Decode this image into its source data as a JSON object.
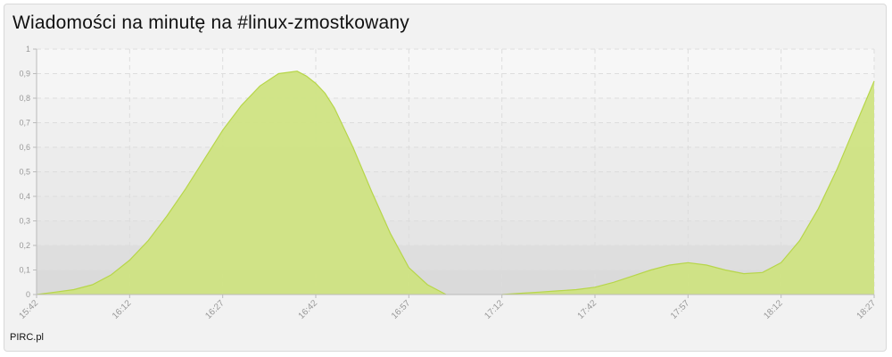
{
  "title": "Wiadomości na minutę na #linux-zmostkowany",
  "footer": "PIRC.pl",
  "colors": {
    "area_fill": "#cfe382",
    "area_stroke": "#b7d64a",
    "axis_text": "#999999",
    "grid": "#dddddd"
  },
  "chart_data": {
    "type": "area",
    "title": "Wiadomości na minutę na #linux-zmostkowany",
    "xlabel": "",
    "ylabel": "",
    "x_ticks": [
      "15:42",
      "16:12",
      "16:27",
      "16:42",
      "16:57",
      "17:12",
      "17:42",
      "17:57",
      "18:12",
      "18:27"
    ],
    "y_ticks": [
      "0",
      "0,1",
      "0,2",
      "0,3",
      "0,4",
      "0,5",
      "0,6",
      "0,7",
      "0,8",
      "0,9",
      "1"
    ],
    "ylim": [
      0,
      1
    ],
    "grid": true,
    "legend": "none",
    "segments": [
      {
        "x": [
          0,
          0.2,
          0.4,
          0.6,
          0.8,
          1.0,
          1.2,
          1.4,
          1.6,
          1.8,
          2.0,
          2.2,
          2.4,
          2.6,
          2.8,
          2.9,
          3.0,
          3.1,
          3.2,
          3.4,
          3.6,
          3.8,
          4.0,
          4.2,
          4.4
        ],
        "y": [
          0.0,
          0.01,
          0.02,
          0.04,
          0.08,
          0.14,
          0.22,
          0.32,
          0.43,
          0.55,
          0.67,
          0.77,
          0.85,
          0.9,
          0.91,
          0.89,
          0.86,
          0.82,
          0.76,
          0.6,
          0.42,
          0.25,
          0.11,
          0.04,
          0.0
        ]
      },
      {
        "x": [
          5.0,
          5.2,
          5.4,
          5.6,
          5.8,
          6.0,
          6.2,
          6.4,
          6.6,
          6.8,
          7.0,
          7.2,
          7.4,
          7.6,
          7.8,
          8.0,
          8.2,
          8.4,
          8.6,
          8.8,
          9.0
        ],
        "y": [
          0.0,
          0.005,
          0.01,
          0.015,
          0.02,
          0.03,
          0.05,
          0.075,
          0.1,
          0.12,
          0.13,
          0.12,
          0.1,
          0.085,
          0.09,
          0.13,
          0.22,
          0.35,
          0.51,
          0.69,
          0.87
        ]
      }
    ]
  }
}
